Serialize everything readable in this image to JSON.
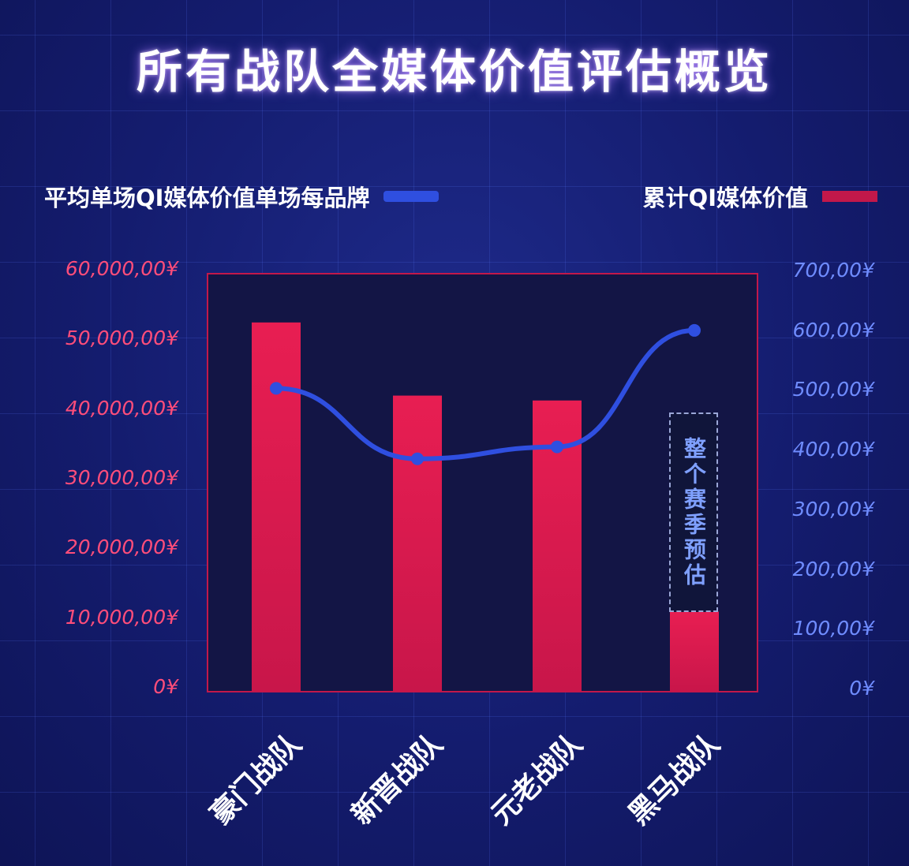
{
  "title": "所有战队全媒体价值评估概览",
  "legend": {
    "line_label": "平均单场QI媒体价值单场每品牌",
    "bar_label": "累计QI媒体价值"
  },
  "annotation": "整个赛季预估",
  "colors": {
    "bar": "#e81e52",
    "line": "#2f4fe0",
    "plot_bg": "#131545",
    "plot_border": "#c2184a"
  },
  "chart_data": {
    "type": "bar",
    "categories": [
      "豪门战队",
      "新晋战队",
      "元老战队",
      "黑马战队"
    ],
    "series": [
      {
        "name": "累计QI媒体价值",
        "type": "bar",
        "axis": "left",
        "values": [
          53000000,
          42500000,
          41800000,
          11500000
        ]
      },
      {
        "name": "平均单场QI媒体价值单场每品牌",
        "type": "line",
        "axis": "right",
        "values": [
          508,
          390,
          410,
          605
        ]
      }
    ],
    "left_axis": {
      "ticks": [
        "60,000,00¥",
        "50,000,00¥",
        "40,000,00¥",
        "30,000,00¥",
        "20,000,00¥",
        "10,000,00¥",
        "0¥"
      ],
      "ylim": [
        0,
        60000000
      ]
    },
    "right_axis": {
      "ticks": [
        "700,00¥",
        "600,00¥",
        "500,00¥",
        "400,00¥",
        "300,00¥",
        "200,00¥",
        "100,00¥",
        "0¥"
      ],
      "ylim": [
        0,
        700
      ]
    },
    "grid": true,
    "legend_position": "top"
  }
}
